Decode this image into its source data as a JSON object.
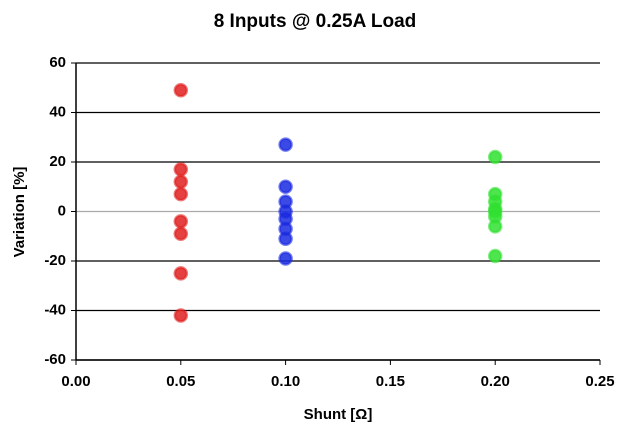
{
  "chart_data": {
    "type": "scatter",
    "title": "8 Inputs @ 0.25A Load",
    "x_label": "Shunt [Ω]",
    "y_label": "Variation [%]",
    "xlim": [
      0,
      0.25
    ],
    "xticks": [
      {
        "value": 0,
        "label": "0.00"
      },
      {
        "value": 0.05,
        "label": "0.05"
      },
      {
        "value": 0.1,
        "label": "0.10"
      },
      {
        "value": 0.15,
        "label": "0.15"
      },
      {
        "value": 0.2,
        "label": "0.20"
      },
      {
        "value": 0.25,
        "label": "0.25"
      }
    ],
    "ylim": [
      -60,
      60
    ],
    "yticks": [
      -60,
      -40,
      -20,
      0,
      20,
      40,
      60
    ],
    "grid": true,
    "series": [
      {
        "color": "#e02020",
        "x": [
          0.05,
          0.05,
          0.05,
          0.05,
          0.05,
          0.05,
          0.05,
          0.05
        ],
        "values": [
          49,
          17,
          12,
          7,
          -4,
          -9,
          -25,
          -42
        ]
      },
      {
        "color": "#1a2ae0",
        "x": [
          0.1,
          0.1,
          0.1,
          0.1,
          0.1,
          0.1,
          0.1,
          0.1
        ],
        "values": [
          27,
          10,
          4,
          0,
          -3,
          -7,
          -11,
          -19
        ]
      },
      {
        "color": "#30e030",
        "x": [
          0.2,
          0.2,
          0.2,
          0.2,
          0.2,
          0.2,
          0.2,
          0.2
        ],
        "values": [
          22,
          7,
          4,
          1,
          0,
          -2,
          -6,
          -18
        ]
      }
    ]
  }
}
